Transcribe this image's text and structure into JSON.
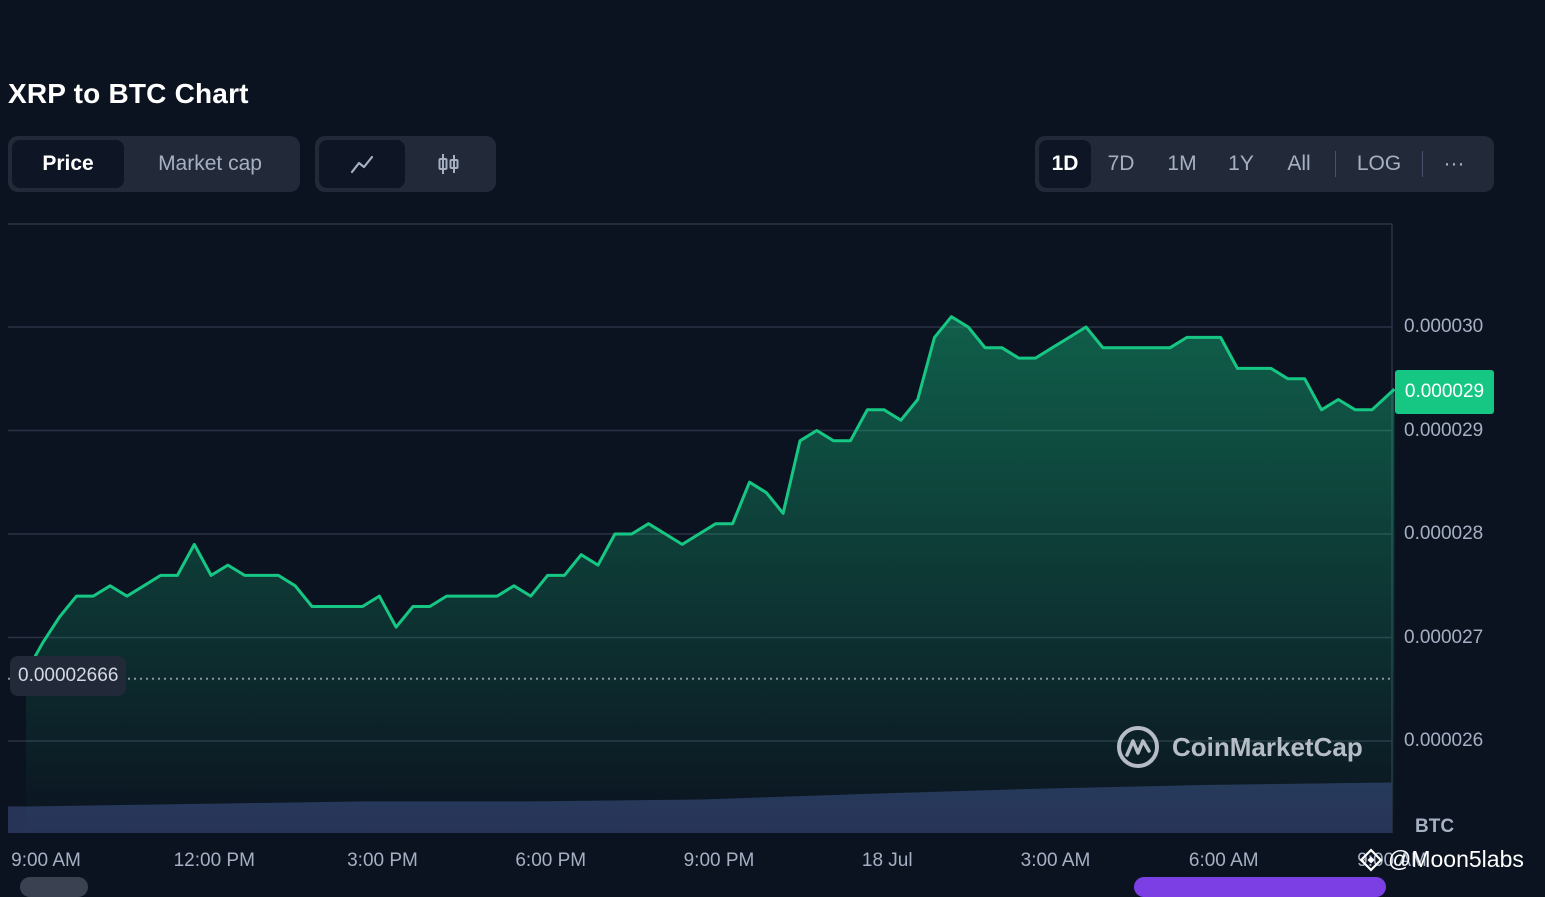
{
  "page_title": "XRP to BTC Chart",
  "metric_tabs": [
    {
      "label": "Price",
      "active": true
    },
    {
      "label": "Market cap",
      "active": false
    }
  ],
  "chart_type_buttons": [
    {
      "icon": "line-chart-icon",
      "active": true
    },
    {
      "icon": "candlestick-icon",
      "active": false
    }
  ],
  "range_buttons": [
    {
      "label": "1D",
      "active": true
    },
    {
      "label": "7D",
      "active": false
    },
    {
      "label": "1M",
      "active": false
    },
    {
      "label": "1Y",
      "active": false
    },
    {
      "label": "All",
      "active": false
    }
  ],
  "scale_button": {
    "label": "LOG"
  },
  "more_button": {
    "label": "···",
    "icon": "more-icon"
  },
  "current_price_label": "0.000029",
  "open_price_label": "0.00002666",
  "unit_label": "BTC",
  "watermark": {
    "text": "CoinMarketCap",
    "icon": "coinmarketcap-logo-icon"
  },
  "attribution": {
    "text": "@Moon5labs",
    "icon": "binance-square-icon"
  },
  "colors": {
    "background": "#0b1320",
    "line": "#16c784",
    "volume": "#273458",
    "panel": "#222a39",
    "text_muted": "#a6b0c3",
    "accent_purple": "#7b3fe4"
  },
  "chart_data": {
    "type": "area",
    "title": "XRP to BTC Chart",
    "xlabel": "",
    "ylabel": "",
    "y_unit": "BTC",
    "ylim": [
      2.55e-05,
      3.1e-05
    ],
    "y_ticks": [
      2.6e-05,
      2.7e-05,
      2.8e-05,
      2.9e-05,
      3e-05
    ],
    "y_tick_labels": [
      "0.000026",
      "0.000027",
      "0.000028",
      "0.000029",
      "0.000030"
    ],
    "x_ticks": [
      "9:00 AM",
      "12:00 PM",
      "3:00 PM",
      "6:00 PM",
      "9:00 PM",
      "18 Jul",
      "3:00 AM",
      "6:00 AM",
      "9:00 AM"
    ],
    "x_hours_range": [
      0,
      24.5
    ],
    "x_tick_hours": [
      0,
      3,
      6,
      9,
      12,
      15,
      18,
      21,
      24
    ],
    "grid": true,
    "reference_line": {
      "value": 2.666e-05,
      "style": "dotted"
    },
    "current_value": 2.94e-05,
    "series": [
      {
        "hours": [
          0,
          0.3,
          0.6,
          0.9,
          1.2,
          1.5,
          1.8,
          2.1,
          2.4,
          2.7,
          3.0,
          3.3,
          3.6,
          3.9,
          4.2,
          4.5,
          4.8,
          5.1,
          5.4,
          5.7,
          6.0,
          6.3,
          6.6,
          6.9,
          7.2,
          7.5,
          7.8,
          8.1,
          8.4,
          8.7,
          9.0,
          9.3,
          9.6,
          9.9,
          10.2,
          10.5,
          10.8,
          11.1,
          11.4,
          11.7,
          12.0,
          12.3,
          12.6,
          12.9,
          13.2,
          13.5,
          13.8,
          14.1,
          14.4,
          14.7,
          15.0,
          15.3,
          15.6,
          15.9,
          16.2,
          16.5,
          16.8,
          17.1,
          17.4,
          17.7,
          18.0,
          18.3,
          18.6,
          18.9,
          19.2,
          19.5,
          19.8,
          20.1,
          20.4,
          20.7,
          21.0,
          21.3,
          21.6,
          21.9,
          22.2,
          22.5,
          22.8,
          23.1,
          23.4,
          23.7,
          24.0,
          24.2,
          24.4
        ],
        "values": [
          2.666e-05,
          2.695e-05,
          2.72e-05,
          2.74e-05,
          2.74e-05,
          2.75e-05,
          2.74e-05,
          2.75e-05,
          2.76e-05,
          2.76e-05,
          2.79e-05,
          2.76e-05,
          2.77e-05,
          2.76e-05,
          2.76e-05,
          2.76e-05,
          2.75e-05,
          2.73e-05,
          2.73e-05,
          2.73e-05,
          2.73e-05,
          2.74e-05,
          2.71e-05,
          2.73e-05,
          2.73e-05,
          2.74e-05,
          2.74e-05,
          2.74e-05,
          2.74e-05,
          2.75e-05,
          2.74e-05,
          2.76e-05,
          2.76e-05,
          2.78e-05,
          2.77e-05,
          2.8e-05,
          2.8e-05,
          2.81e-05,
          2.8e-05,
          2.79e-05,
          2.8e-05,
          2.81e-05,
          2.81e-05,
          2.85e-05,
          2.84e-05,
          2.82e-05,
          2.89e-05,
          2.9e-05,
          2.89e-05,
          2.89e-05,
          2.92e-05,
          2.92e-05,
          2.91e-05,
          2.93e-05,
          2.99e-05,
          3.01e-05,
          3e-05,
          2.98e-05,
          2.98e-05,
          2.97e-05,
          2.97e-05,
          2.98e-05,
          2.99e-05,
          3e-05,
          2.98e-05,
          2.98e-05,
          2.98e-05,
          2.98e-05,
          2.98e-05,
          2.99e-05,
          2.99e-05,
          2.99e-05,
          2.96e-05,
          2.96e-05,
          2.96e-05,
          2.95e-05,
          2.95e-05,
          2.92e-05,
          2.93e-05,
          2.92e-05,
          2.92e-05,
          2.93e-05,
          2.94e-05
        ]
      }
    ],
    "volume": {
      "hours": [
        0,
        3,
        6,
        9,
        12,
        15,
        18,
        21,
        24.4
      ],
      "relative": [
        0.42,
        0.46,
        0.5,
        0.5,
        0.53,
        0.62,
        0.7,
        0.76,
        0.8
      ]
    }
  }
}
